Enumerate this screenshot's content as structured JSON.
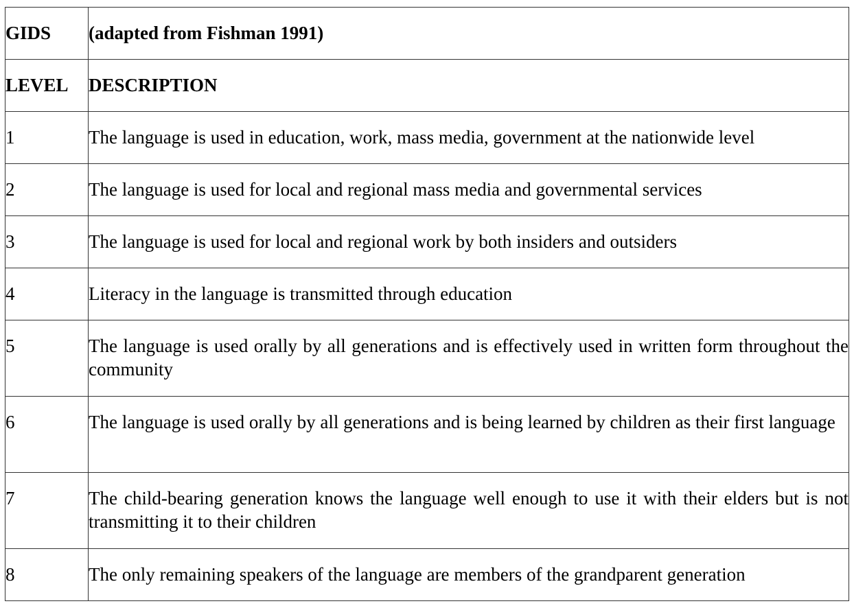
{
  "table": {
    "header": {
      "gids_label": "GIDS",
      "source": "(adapted from Fishman 1991)",
      "level_label": "LEVEL",
      "description_label": "DESCRIPTION"
    },
    "rows": [
      {
        "level": "1",
        "description": "The language is used in education, work, mass media, government at the nationwide level"
      },
      {
        "level": "2",
        "description": "The language is used for local and regional mass media and governmental services"
      },
      {
        "level": "3",
        "description": "The language is used for local and regional work by both insiders and outsiders"
      },
      {
        "level": "4",
        "description": "Literacy in the language is transmitted through education"
      },
      {
        "level": "5",
        "description": "The language is used orally by all generations and is effectively used in written form throughout the community"
      },
      {
        "level": "6",
        "description": "The language is used orally by all generations and is being learned by children as their first language"
      },
      {
        "level": "7",
        "description": "The child-bearing generation knows the language well enough to use it with their elders but is not transmitting it to their children"
      },
      {
        "level": "8",
        "description": "The only remaining speakers of the language are members of the grandparent generation"
      }
    ]
  }
}
